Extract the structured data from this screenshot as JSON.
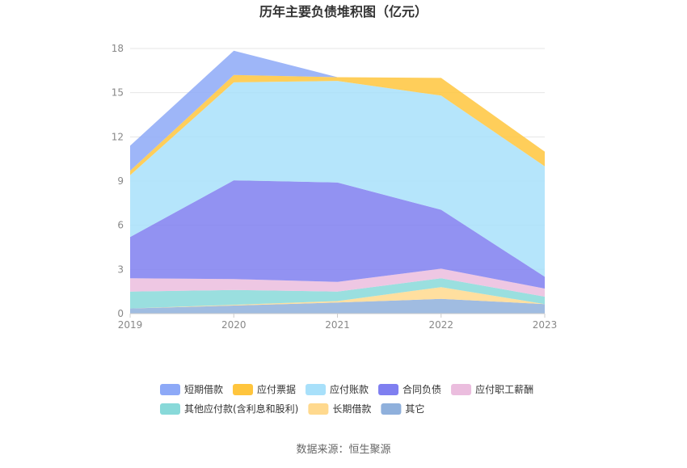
{
  "title": "历年主要负债堆积图（亿元）",
  "source_text": "数据来源：恒生聚源",
  "chart_data": {
    "type": "area",
    "stacked": true,
    "title": "历年主要负债堆积图（亿元）",
    "x": [
      "2019",
      "2020",
      "2021",
      "2022",
      "2023"
    ],
    "y_ticks": [
      "0",
      "3",
      "6",
      "9",
      "12",
      "15",
      "18"
    ],
    "ylim": [
      0,
      18
    ],
    "grid": true,
    "legend_position": "bottom",
    "series": [
      {
        "name": "其它",
        "color": "#8fb0dc",
        "values": [
          0.35,
          0.55,
          0.75,
          1.0,
          0.65
        ]
      },
      {
        "name": "长期借款",
        "color": "#ffd98e",
        "values": [
          0.0,
          0.05,
          0.1,
          0.8,
          0.0
        ]
      },
      {
        "name": "其他应付款(含利息和股利)",
        "color": "#88d9d9",
        "values": [
          1.15,
          1.0,
          0.65,
          0.6,
          0.5
        ]
      },
      {
        "name": "应付职工薪酬",
        "color": "#ebbdde",
        "values": [
          0.9,
          0.75,
          0.65,
          0.65,
          0.55
        ]
      },
      {
        "name": "合同负债",
        "color": "#7f7ff0",
        "values": [
          2.8,
          6.7,
          6.75,
          4.0,
          0.8
        ]
      },
      {
        "name": "应付账款",
        "color": "#a8e0fa",
        "values": [
          4.2,
          6.65,
          6.9,
          7.75,
          7.5
        ]
      },
      {
        "name": "应付票据",
        "color": "#ffc53d",
        "values": [
          0.3,
          0.5,
          0.25,
          1.2,
          1.0
        ]
      },
      {
        "name": "短期借款",
        "color": "#8da9f7",
        "values": [
          1.7,
          1.65,
          0.0,
          0.0,
          0.0
        ]
      }
    ],
    "legend_order": [
      "短期借款",
      "应付票据",
      "应付账款",
      "合同负债",
      "应付职工薪酬",
      "其他应付款(含利息和股利)",
      "长期借款",
      "其它"
    ]
  }
}
